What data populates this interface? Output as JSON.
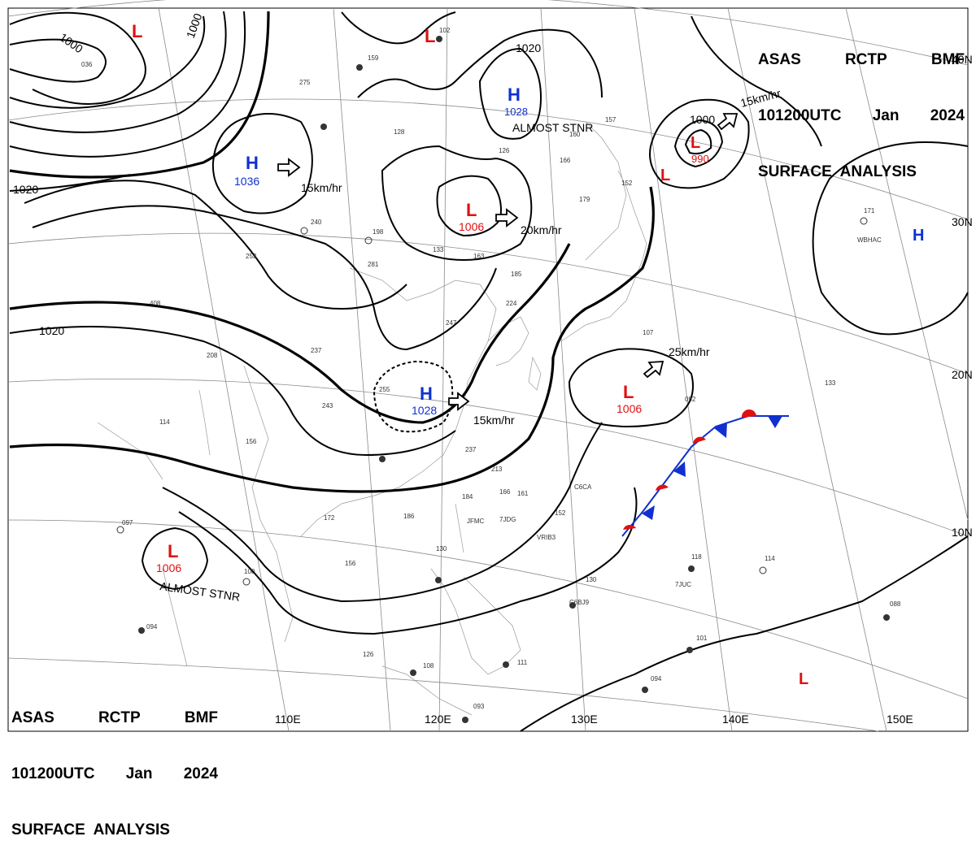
{
  "header_top": {
    "line1": [
      "ASAS",
      "RCTP",
      "BMF"
    ],
    "line2": [
      "101200UTC",
      "Jan",
      "2024"
    ],
    "line3": "SURFACE  ANALYSIS"
  },
  "header_bottom": {
    "line1": [
      "ASAS",
      "RCTP",
      "BMF"
    ],
    "line2": [
      "101200UTC",
      "Jan",
      "2024"
    ],
    "line3": "SURFACE  ANALYSIS"
  },
  "colors": {
    "high": "#1030d0",
    "low": "#e01010",
    "front_red": "#e01010",
    "front_blue": "#1030d0"
  },
  "pressure_systems": [
    {
      "type": "L",
      "value": ""
    },
    {
      "type": "L",
      "value": ""
    },
    {
      "type": "H",
      "value": "1028",
      "note": "ALMOST STNR"
    },
    {
      "type": "H",
      "value": "1036",
      "motion": "15km/hr"
    },
    {
      "type": "L",
      "value": "1006",
      "motion": "20km/hr"
    },
    {
      "type": "L",
      "value": "990",
      "motion": "15km/hr"
    },
    {
      "type": "L",
      "value": ""
    },
    {
      "type": "H",
      "value": ""
    },
    {
      "type": "H",
      "value": "1028",
      "motion": "15km/hr"
    },
    {
      "type": "L",
      "value": "1006",
      "motion": "25km/hr"
    },
    {
      "type": "L",
      "value": "1006",
      "note": "ALMOST STNR"
    },
    {
      "type": "L",
      "value": ""
    }
  ],
  "isobar_labels": [
    "1000",
    "1000",
    "1020",
    "1020",
    "1020",
    "1000"
  ],
  "latitude_labels": [
    "40N",
    "30N",
    "20N",
    "10N"
  ],
  "longitude_labels": [
    "110E",
    "120E",
    "130E",
    "140E",
    "150E"
  ],
  "station_labels": [
    "WBHAC",
    "JFMC",
    "7JDG",
    "VRIB3",
    "C6CA",
    "C6BJ9",
    "7JUC"
  ],
  "station_values": [
    "036",
    "275",
    "128",
    "102",
    "159",
    "126",
    "160",
    "157",
    "166",
    "179",
    "152",
    "240",
    "198",
    "281",
    "133",
    "163",
    "185",
    "224",
    "253",
    "408",
    "237",
    "208",
    "247",
    "255",
    "243",
    "114",
    "156",
    "237",
    "213",
    "184",
    "161",
    "152",
    "186",
    "172",
    "166",
    "156",
    "130",
    "100",
    "097",
    "094",
    "126",
    "108",
    "118",
    "107",
    "092",
    "133",
    "114",
    "088",
    "101",
    "094",
    "093",
    "111",
    "171",
    "130"
  ]
}
